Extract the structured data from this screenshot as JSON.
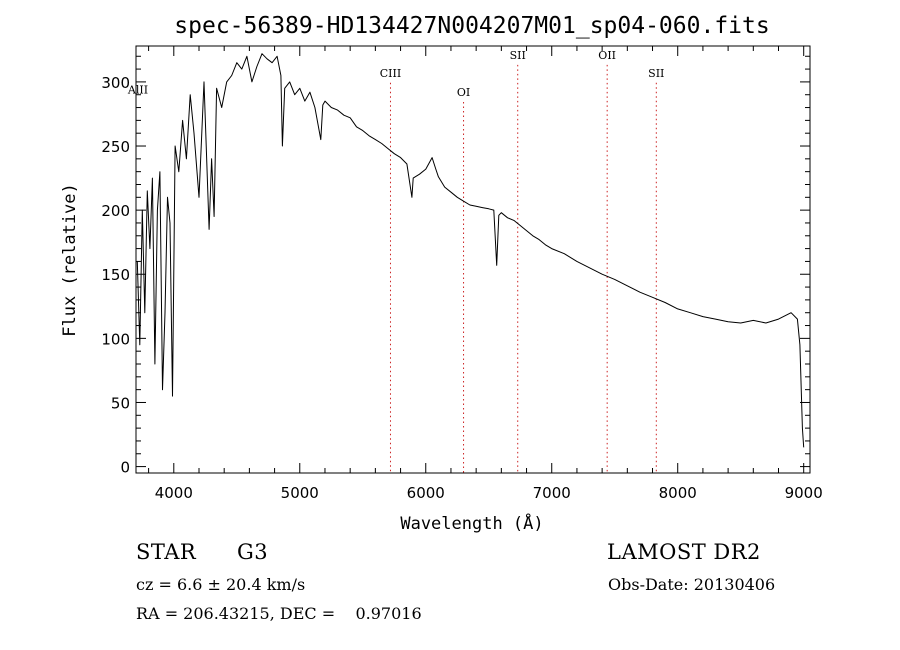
{
  "chart_data": {
    "type": "line",
    "title": "spec-56389-HD134427N004207M01_sp04-060.fits",
    "xlabel": "Wavelength (Å)",
    "ylabel": "Flux (relative)",
    "xlim": [
      3700,
      9050
    ],
    "ylim": [
      -5,
      328
    ],
    "x_ticks": [
      4000,
      5000,
      6000,
      7000,
      8000,
      9000
    ],
    "y_ticks": [
      0,
      50,
      100,
      150,
      200,
      250,
      300
    ],
    "grid": false,
    "line_color": "#000000",
    "marker_color": "#cc2222",
    "series": [
      {
        "x": [
          3710,
          3730,
          3750,
          3770,
          3790,
          3810,
          3830,
          3850,
          3870,
          3890,
          3910,
          3930,
          3950,
          3970,
          3990,
          4010,
          4040,
          4070,
          4100,
          4130,
          4160,
          4200,
          4240,
          4280,
          4300,
          4320,
          4340,
          4380,
          4420,
          4460,
          4500,
          4540,
          4580,
          4620,
          4660,
          4700,
          4740,
          4780,
          4820,
          4850,
          4862,
          4880,
          4920,
          4960,
          5000,
          5040,
          5080,
          5120,
          5167,
          5183,
          5200,
          5250,
          5300,
          5350,
          5400,
          5450,
          5500,
          5550,
          5600,
          5650,
          5700,
          5750,
          5800,
          5850,
          5890,
          5900,
          5950,
          6000,
          6050,
          6080,
          6100,
          6150,
          6200,
          6250,
          6300,
          6350,
          6400,
          6450,
          6500,
          6540,
          6563,
          6580,
          6600,
          6650,
          6700,
          6750,
          6800,
          6850,
          6900,
          6950,
          7000,
          7100,
          7200,
          7300,
          7400,
          7500,
          7600,
          7700,
          7800,
          7900,
          8000,
          8100,
          8200,
          8300,
          8400,
          8500,
          8600,
          8700,
          8800,
          8900,
          8950,
          8970,
          8990,
          9000
        ],
        "y": [
          160,
          95,
          200,
          120,
          215,
          170,
          225,
          80,
          200,
          230,
          60,
          120,
          210,
          190,
          55,
          250,
          230,
          270,
          240,
          290,
          260,
          210,
          300,
          185,
          240,
          195,
          295,
          280,
          300,
          305,
          315,
          310,
          320,
          300,
          312,
          322,
          318,
          315,
          320,
          305,
          250,
          295,
          300,
          290,
          295,
          285,
          292,
          280,
          255,
          282,
          285,
          280,
          278,
          274,
          272,
          265,
          262,
          258,
          255,
          252,
          248,
          244,
          241,
          236,
          210,
          225,
          228,
          232,
          241,
          232,
          226,
          218,
          214,
          210,
          207,
          204,
          203,
          202,
          201,
          200,
          157,
          196,
          198,
          194,
          192,
          188,
          184,
          180,
          177,
          173,
          170,
          166,
          160,
          155,
          150,
          146,
          141,
          136,
          132,
          128,
          123,
          120,
          117,
          115,
          113,
          112,
          114,
          112,
          115,
          120,
          115,
          95,
          30,
          15
        ]
      }
    ],
    "line_markers": [
      {
        "label": "AlII",
        "x": 3700,
        "label_y": 291
      },
      {
        "label": "CIII",
        "x": 5720,
        "label_y": 304
      },
      {
        "label": "OI",
        "x": 6300,
        "label_y": 289
      },
      {
        "label": "SII",
        "x": 6730,
        "label_y": 318
      },
      {
        "label": "OII",
        "x": 7440,
        "label_y": 318
      },
      {
        "label": "SII",
        "x": 7830,
        "label_y": 304
      }
    ]
  },
  "info": {
    "object_type": "STAR",
    "subclass": "G3",
    "survey": "LAMOST DR2",
    "redshift": "cz = 6.6 ± 20.4 km/s",
    "obs_date": "Obs-Date: 20130406",
    "coords": "RA = 206.43215, DEC =    0.97016"
  }
}
